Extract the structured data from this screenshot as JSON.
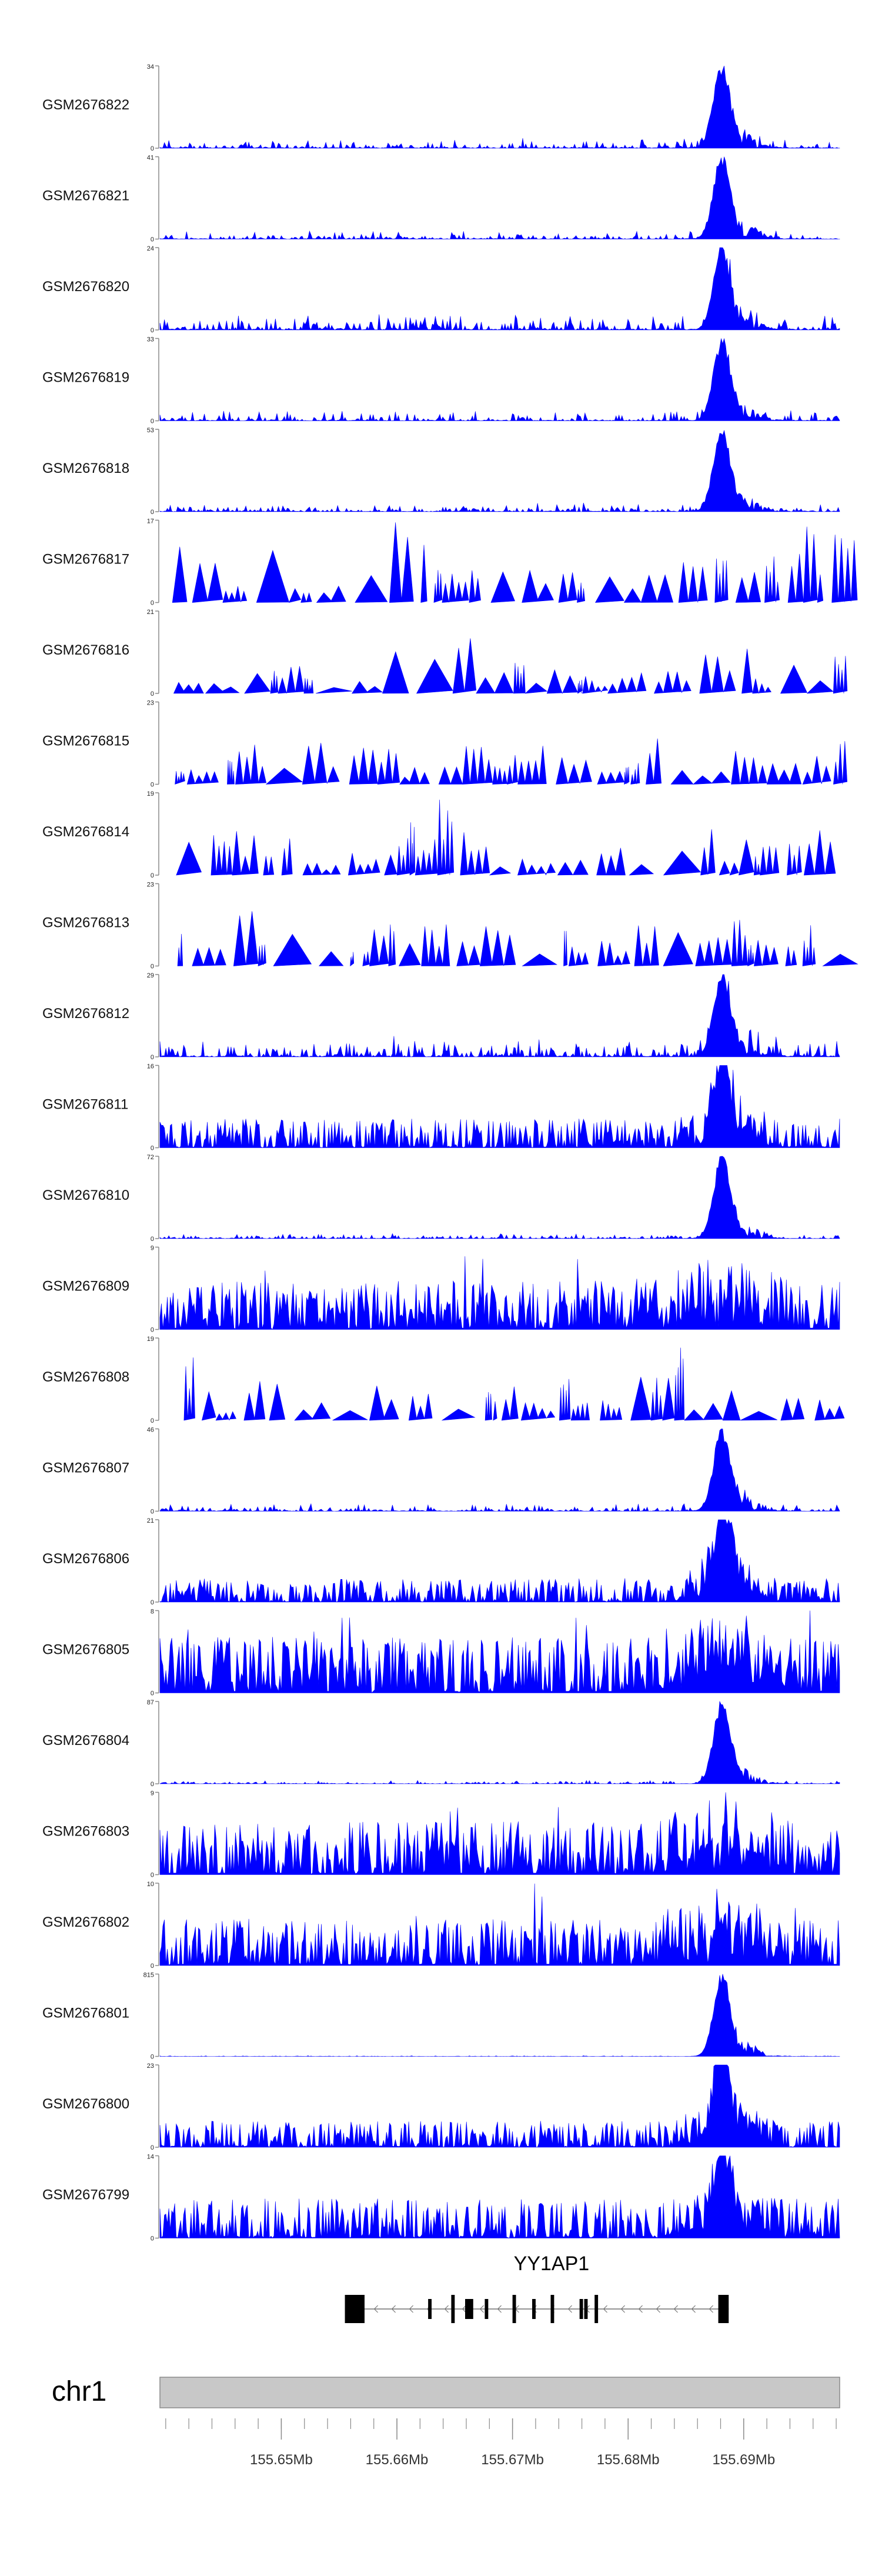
{
  "chart_data": {
    "type": "area",
    "title": "",
    "chromosome": "chr1",
    "colors": {
      "signal": "#0000ff",
      "axis": "#8a8a8a",
      "ideogram_fill": "#c8c8c8",
      "ideogram_border": "#8a8a8a",
      "gene": "#000000"
    },
    "xlim": [
      155.6395,
      155.6983
    ],
    "x_unit": "Mb",
    "x_ticks": [
      {
        "value": 155.65,
        "label": "155.65Mb"
      },
      {
        "value": 155.66,
        "label": "155.66Mb"
      },
      {
        "value": 155.67,
        "label": "155.67Mb"
      },
      {
        "value": 155.68,
        "label": "155.68Mb"
      },
      {
        "value": 155.69,
        "label": "155.69Mb"
      }
    ],
    "minor_tick_step": 0.002,
    "gene": {
      "name": "YY1AP1",
      "strand": "-",
      "start": 155.6555,
      "end": 155.6887,
      "exons": [
        {
          "start": 155.6555,
          "end": 155.6572,
          "height": "full"
        },
        {
          "start": 155.6627,
          "end": 155.663,
          "height": "half"
        },
        {
          "start": 155.6647,
          "end": 155.665,
          "height": "full"
        },
        {
          "start": 155.6659,
          "end": 155.6666,
          "height": "half"
        },
        {
          "start": 155.6676,
          "end": 155.6679,
          "height": "half"
        },
        {
          "start": 155.67,
          "end": 155.6703,
          "height": "full"
        },
        {
          "start": 155.6717,
          "end": 155.672,
          "height": "half"
        },
        {
          "start": 155.6733,
          "end": 155.6736,
          "height": "full"
        },
        {
          "start": 155.6758,
          "end": 155.6761,
          "height": "half"
        },
        {
          "start": 155.6762,
          "end": 155.6765,
          "height": "half"
        },
        {
          "start": 155.6771,
          "end": 155.6774,
          "height": "full"
        },
        {
          "start": 155.6878,
          "end": 155.6887,
          "height": "full"
        }
      ]
    },
    "series": [
      {
        "name": "GSM2676822",
        "ymax": 34,
        "ymin": 0,
        "profile": "peak",
        "noise": 0.06,
        "seed": 1
      },
      {
        "name": "GSM2676821",
        "ymax": 41,
        "ymin": 0,
        "profile": "peak",
        "noise": 0.05,
        "seed": 2
      },
      {
        "name": "GSM2676820",
        "ymax": 24,
        "ymin": 0,
        "profile": "peak",
        "noise": 0.09,
        "seed": 3
      },
      {
        "name": "GSM2676819",
        "ymax": 33,
        "ymin": 0,
        "profile": "peak",
        "noise": 0.06,
        "seed": 4
      },
      {
        "name": "GSM2676818",
        "ymax": 53,
        "ymin": 0,
        "profile": "peak",
        "noise": 0.05,
        "seed": 5
      },
      {
        "name": "GSM2676817",
        "ymax": 17,
        "ymin": 0,
        "profile": "spiky",
        "noise": 0.0,
        "seed": 6
      },
      {
        "name": "GSM2676816",
        "ymax": 21,
        "ymin": 0,
        "profile": "spiky",
        "noise": 0.0,
        "seed": 7
      },
      {
        "name": "GSM2676815",
        "ymax": 23,
        "ymin": 0,
        "profile": "spiky",
        "noise": 0.0,
        "seed": 8
      },
      {
        "name": "GSM2676814",
        "ymax": 19,
        "ymin": 0,
        "profile": "spiky",
        "noise": 0.0,
        "seed": 9
      },
      {
        "name": "GSM2676813",
        "ymax": 23,
        "ymin": 0,
        "profile": "spiky",
        "noise": 0.0,
        "seed": 10
      },
      {
        "name": "GSM2676812",
        "ymax": 29,
        "ymin": 0,
        "profile": "peak",
        "noise": 0.12,
        "seed": 11
      },
      {
        "name": "GSM2676811",
        "ymax": 16,
        "ymin": 0,
        "profile": "dense-peak",
        "noise": 0.22,
        "seed": 12
      },
      {
        "name": "GSM2676810",
        "ymax": 72,
        "ymin": 0,
        "profile": "peak",
        "noise": 0.03,
        "seed": 13
      },
      {
        "name": "GSM2676809",
        "ymax": 9,
        "ymin": 0,
        "profile": "dense",
        "noise": 0.35,
        "seed": 14
      },
      {
        "name": "GSM2676808",
        "ymax": 19,
        "ymin": 0,
        "profile": "spiky",
        "noise": 0.0,
        "seed": 15
      },
      {
        "name": "GSM2676807",
        "ymax": 46,
        "ymin": 0,
        "profile": "peak",
        "noise": 0.05,
        "seed": 16
      },
      {
        "name": "GSM2676806",
        "ymax": 21,
        "ymin": 0,
        "profile": "dense-peak",
        "noise": 0.18,
        "seed": 17
      },
      {
        "name": "GSM2676805",
        "ymax": 8,
        "ymin": 0,
        "profile": "dense",
        "noise": 0.4,
        "seed": 18
      },
      {
        "name": "GSM2676804",
        "ymax": 87,
        "ymin": 0,
        "profile": "peak",
        "noise": 0.02,
        "seed": 19
      },
      {
        "name": "GSM2676803",
        "ymax": 9,
        "ymin": 0,
        "profile": "dense",
        "noise": 0.38,
        "seed": 20
      },
      {
        "name": "GSM2676802",
        "ymax": 10,
        "ymin": 0,
        "profile": "dense",
        "noise": 0.33,
        "seed": 21
      },
      {
        "name": "GSM2676801",
        "ymax": 815,
        "ymin": 0,
        "profile": "peak",
        "noise": 0.004,
        "seed": 22
      },
      {
        "name": "GSM2676800",
        "ymax": 23,
        "ymin": 0,
        "profile": "dense-peak",
        "noise": 0.2,
        "seed": 23
      },
      {
        "name": "GSM2676799",
        "ymax": 14,
        "ymin": 0,
        "profile": "dense-peak",
        "noise": 0.3,
        "seed": 24
      }
    ]
  }
}
